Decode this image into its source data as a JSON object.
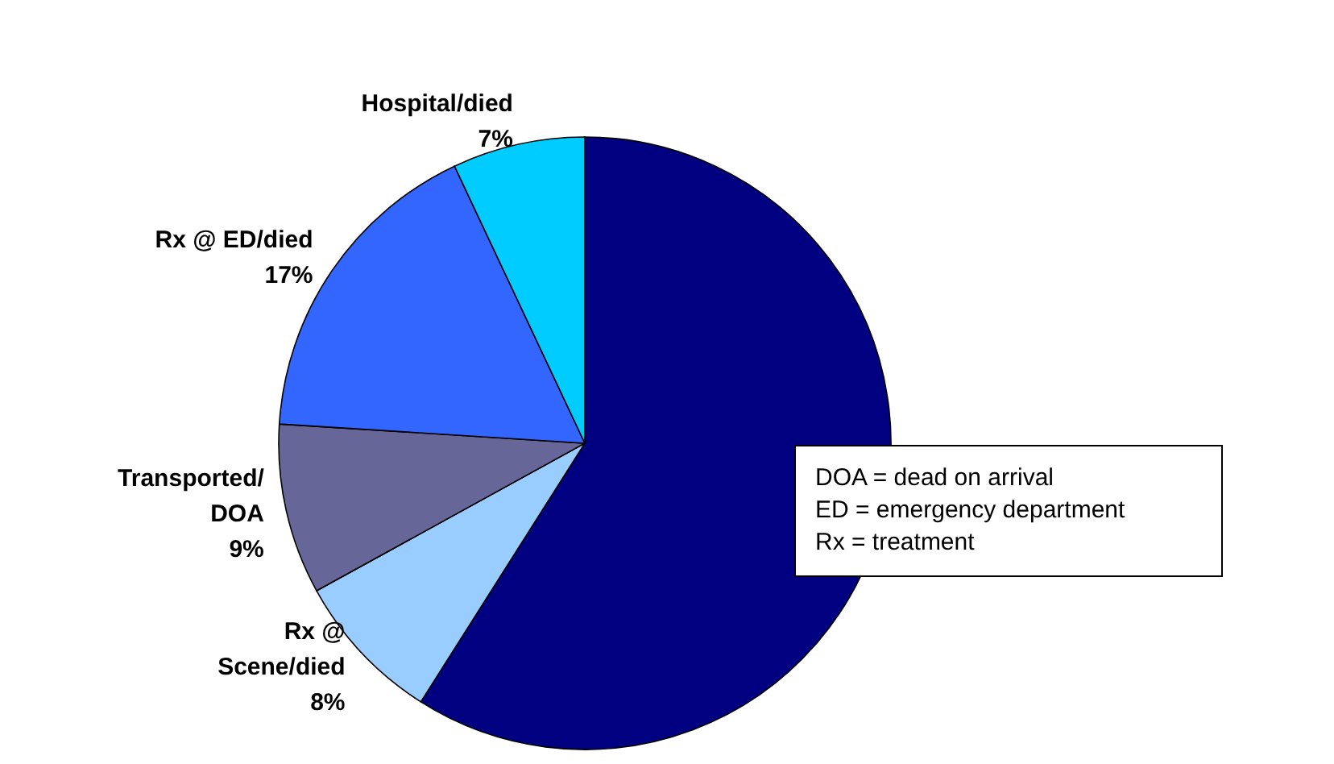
{
  "chart_data": {
    "type": "pie",
    "categories": [
      null,
      "Rx @ Scene/died",
      "Transported/ DOA",
      "Rx @ ED/died",
      "Hospital/died"
    ],
    "values": [
      59,
      8,
      9,
      17,
      7
    ],
    "colors": [
      "#000080",
      "#99ccff",
      "#666699",
      "#3366ff",
      "#00ccff"
    ],
    "value_labels": [
      null,
      "8%",
      "9%",
      "17%",
      "7%"
    ],
    "annotations": [
      "DOA = dead on arrival",
      "ED = emergency department",
      "Rx = treatment"
    ],
    "legend": false
  }
}
